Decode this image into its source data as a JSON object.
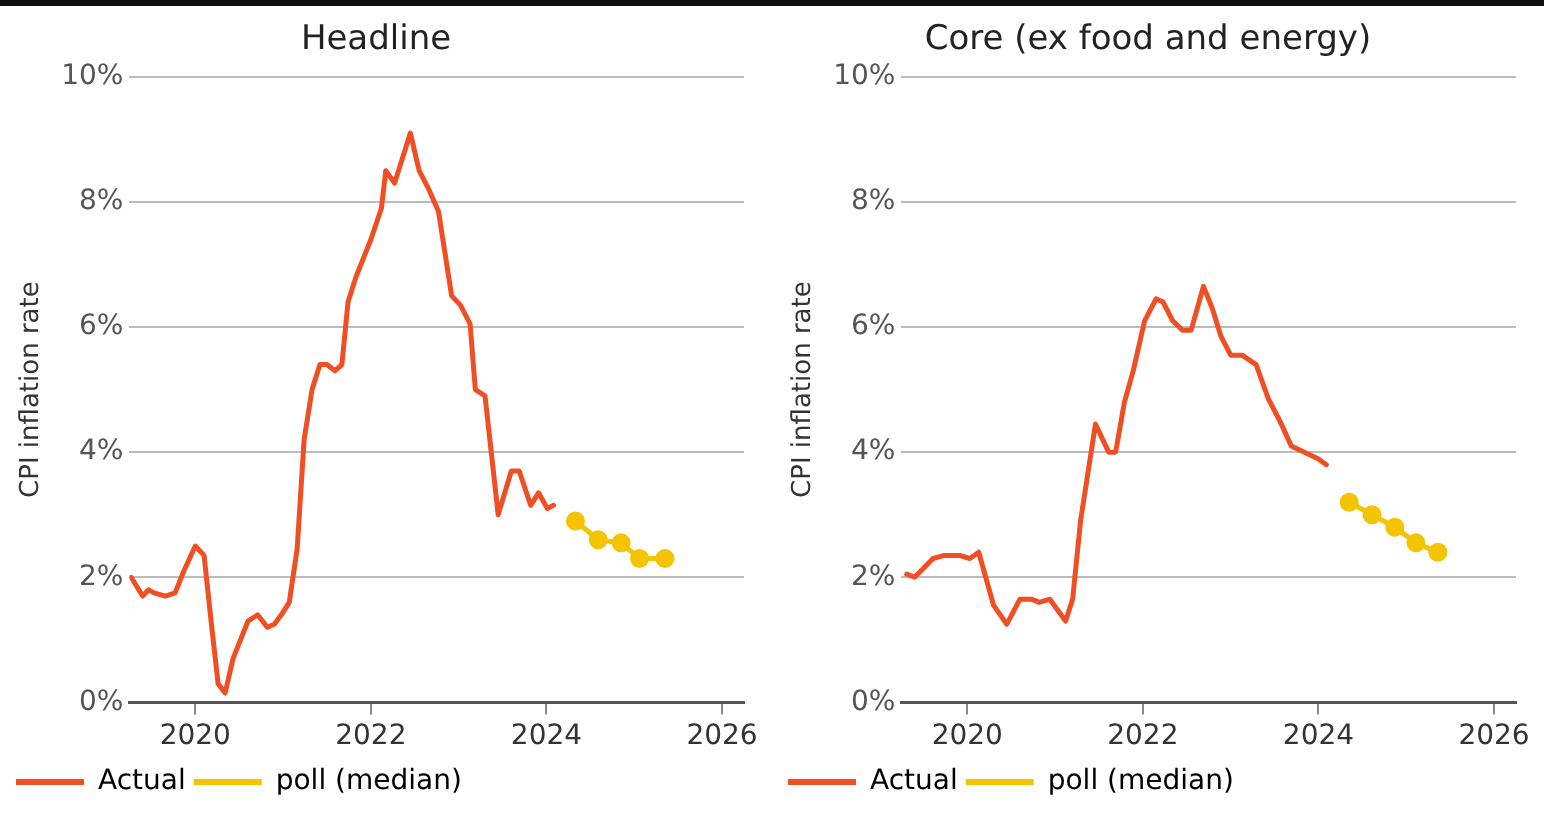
{
  "chart_data": [
    {
      "type": "line",
      "title": "Headline",
      "ylabel": "CPI inflation rate",
      "xlim": [
        2019.25,
        2026.25
      ],
      "xticks": [
        2020,
        2022,
        2024,
        2026
      ],
      "ylim": [
        0,
        10
      ],
      "yticks": [
        {
          "value": 0,
          "label": "0%"
        },
        {
          "value": 2,
          "label": "2%"
        },
        {
          "value": 4,
          "label": "4%"
        },
        {
          "value": 6,
          "label": "6%"
        },
        {
          "value": 8,
          "label": "8%"
        },
        {
          "value": 10,
          "label": "10%"
        }
      ],
      "grid": "y",
      "legend": "bottom",
      "series": [
        {
          "name": "Actual",
          "color": "#f04e23",
          "marker": "none",
          "x": [
            2019.27,
            2019.4,
            2019.47,
            2019.53,
            2019.66,
            2019.77,
            2019.87,
            2020.0,
            2020.1,
            2020.18,
            2020.26,
            2020.34,
            2020.43,
            2020.6,
            2020.71,
            2020.82,
            2020.9,
            2020.98,
            2021.07,
            2021.16,
            2021.24,
            2021.33,
            2021.42,
            2021.5,
            2021.59,
            2021.67,
            2021.74,
            2021.83,
            2022.0,
            2022.12,
            2022.17,
            2022.27,
            2022.45,
            2022.55,
            2022.66,
            2022.77,
            2022.92,
            2023.02,
            2023.13,
            2023.19,
            2023.3,
            2023.45,
            2023.6,
            2023.69,
            2023.82,
            2023.91,
            2024.01,
            2024.08
          ],
          "values": [
            2.0,
            1.7,
            1.8,
            1.75,
            1.7,
            1.75,
            2.1,
            2.5,
            2.35,
            1.3,
            0.3,
            0.15,
            0.7,
            1.3,
            1.4,
            1.2,
            1.25,
            1.4,
            1.6,
            2.45,
            4.2,
            5.0,
            5.4,
            5.4,
            5.3,
            5.4,
            6.4,
            6.8,
            7.4,
            7.9,
            8.5,
            8.3,
            9.1,
            8.5,
            8.2,
            7.85,
            6.5,
            6.35,
            6.05,
            5.0,
            4.9,
            3.0,
            3.7,
            3.7,
            3.15,
            3.35,
            3.1,
            3.15
          ]
        },
        {
          "name": "poll (median)",
          "color": "#f5c400",
          "marker": "circle",
          "x": [
            2024.33,
            2024.59,
            2024.85,
            2025.06,
            2025.35
          ],
          "values": [
            2.9,
            2.6,
            2.55,
            2.3,
            2.3
          ]
        }
      ]
    },
    {
      "type": "line",
      "title": "Core (ex food and energy)",
      "ylabel": "CPI inflation rate",
      "xlim": [
        2019.25,
        2026.25
      ],
      "xticks": [
        2020,
        2022,
        2024,
        2026
      ],
      "ylim": [
        0,
        10
      ],
      "yticks": [
        {
          "value": 0,
          "label": "0%"
        },
        {
          "value": 2,
          "label": "2%"
        },
        {
          "value": 4,
          "label": "4%"
        },
        {
          "value": 6,
          "label": "6%"
        },
        {
          "value": 8,
          "label": "8%"
        },
        {
          "value": 10,
          "label": "10%"
        }
      ],
      "grid": "y",
      "legend": "bottom",
      "series": [
        {
          "name": "Actual",
          "color": "#f04e23",
          "marker": "none",
          "x": [
            2019.31,
            2019.4,
            2019.61,
            2019.74,
            2019.91,
            2020.03,
            2020.13,
            2020.3,
            2020.45,
            2020.6,
            2020.73,
            2020.82,
            2020.94,
            2021.12,
            2021.2,
            2021.29,
            2021.46,
            2021.61,
            2021.69,
            2021.79,
            2021.89,
            2022.02,
            2022.15,
            2022.23,
            2022.34,
            2022.45,
            2022.55,
            2022.69,
            2022.79,
            2022.89,
            2023.0,
            2023.13,
            2023.29,
            2023.43,
            2023.56,
            2023.69,
            2023.84,
            2023.99,
            2024.09
          ],
          "values": [
            2.05,
            2.0,
            2.3,
            2.35,
            2.35,
            2.3,
            2.4,
            1.55,
            1.25,
            1.65,
            1.65,
            1.6,
            1.65,
            1.3,
            1.65,
            2.9,
            4.45,
            4.0,
            4.0,
            4.8,
            5.3,
            6.1,
            6.45,
            6.4,
            6.1,
            5.95,
            5.95,
            6.65,
            6.3,
            5.85,
            5.55,
            5.55,
            5.4,
            4.85,
            4.5,
            4.1,
            4.0,
            3.9,
            3.8
          ]
        },
        {
          "name": "poll (median)",
          "color": "#f5c400",
          "marker": "circle",
          "x": [
            2024.35,
            2024.61,
            2024.87,
            2025.11,
            2025.36
          ],
          "values": [
            3.2,
            3.0,
            2.8,
            2.55,
            2.4
          ]
        }
      ]
    }
  ]
}
